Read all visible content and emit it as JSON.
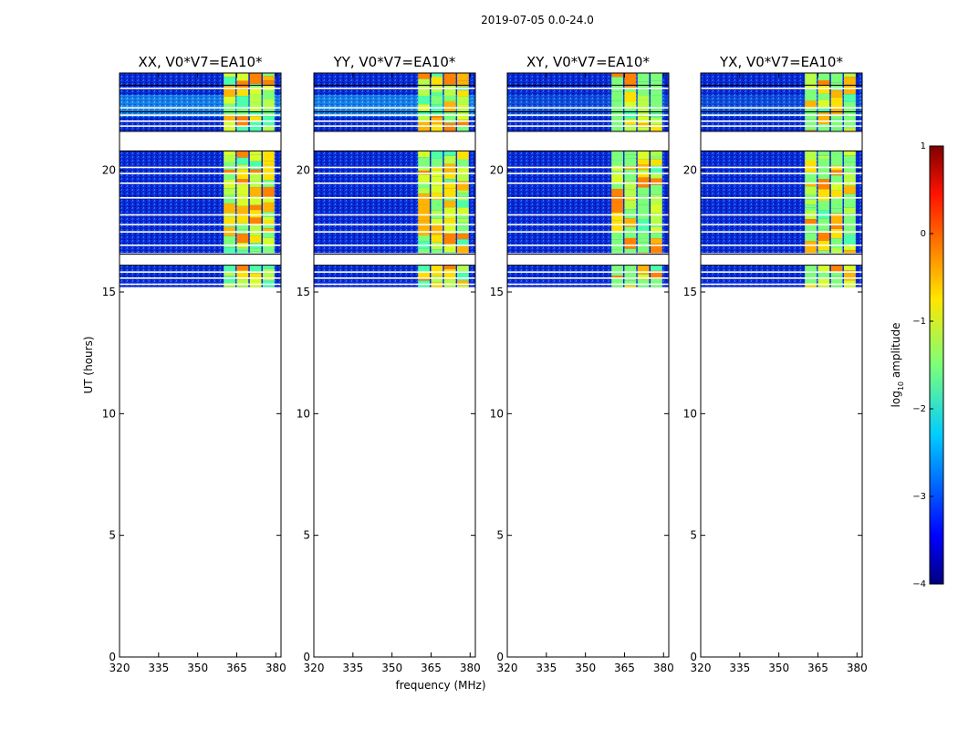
{
  "chart_data": {
    "type": "heatmap",
    "suptitle": "2019-07-05 0.0-24.0",
    "xlabel": "frequency (MHz)",
    "ylabel": "UT (hours)",
    "xlim": [
      320,
      382
    ],
    "ylim": [
      0,
      24
    ],
    "x_ticks": [
      320,
      335,
      350,
      365,
      380
    ],
    "y_ticks": [
      0,
      5,
      10,
      15,
      20
    ],
    "panels": [
      {
        "title": "XX, V0*V7=EA10*",
        "pol": "XX"
      },
      {
        "title": "YY, V0*V7=EA10*",
        "pol": "YY"
      },
      {
        "title": "XY, V0*V7=EA10*",
        "pol": "XY"
      },
      {
        "title": "YX, V0*V7=EA10*",
        "pol": "YX"
      }
    ],
    "data_coverage_hours": [
      [
        15.2,
        16.1
      ],
      [
        16.6,
        20.8
      ],
      [
        21.6,
        24.0
      ]
    ],
    "high_amplitude_band_mhz": [
      360,
      380
    ],
    "colorbar": {
      "label": "log10 amplitude",
      "label_main": "log",
      "label_sub": "10",
      "label_rest": " amplitude",
      "range": [
        -4,
        1
      ],
      "ticks": [
        "1",
        "0",
        "−1",
        "−2",
        "−3",
        "−4"
      ],
      "tick_values": [
        1,
        0,
        -1,
        -2,
        -3,
        -4
      ],
      "colormap": "jet"
    }
  }
}
